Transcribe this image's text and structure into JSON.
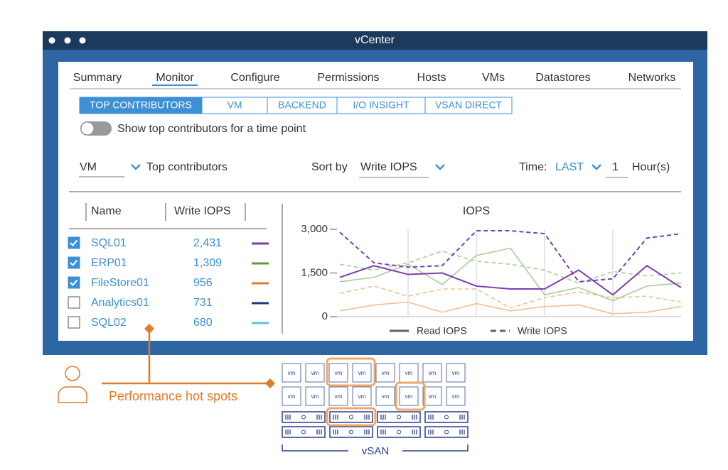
{
  "window": {
    "title": "vCenter"
  },
  "tabs": {
    "items": [
      "Summary",
      "Monitor",
      "Configure",
      "Permissions",
      "Hosts",
      "VMs",
      "Datastores",
      "Networks"
    ],
    "active": 1
  },
  "subtabs": {
    "items": [
      "TOP CONTRIBUTORS",
      "VM",
      "BACKEND",
      "I/O INSIGHT",
      "VSAN DIRECT"
    ],
    "active": 0
  },
  "toggle": {
    "label": "Show top contributors for a time point",
    "on": false
  },
  "filters": {
    "entity": "VM",
    "contributors": "Top contributors",
    "sort_label": "Sort by",
    "sort_value": "Write IOPS",
    "time_label": "Time:",
    "time_mode": "LAST",
    "time_value": "1",
    "time_unit": "Hour(s)"
  },
  "table": {
    "columns": [
      "Name",
      "Write IOPS"
    ],
    "rows": [
      {
        "name": "SQL01",
        "value": "2,431",
        "checked": true,
        "color": "#7b3fb0"
      },
      {
        "name": "ERP01",
        "value": "1,309",
        "checked": true,
        "color": "#5a9e3c"
      },
      {
        "name": "FileStore01",
        "value": "956",
        "checked": true,
        "color": "#e07b2a"
      },
      {
        "name": "Analytics01",
        "value": "731",
        "checked": false,
        "color": "#1f3a7a"
      },
      {
        "name": "SQL02",
        "value": "680",
        "checked": false,
        "color": "#5bc0de"
      }
    ]
  },
  "chart_data": {
    "type": "line",
    "title": "IOPS",
    "categories": [
      null,
      null,
      null,
      null,
      null,
      null,
      null,
      null,
      null,
      null,
      null
    ],
    "ylim": [
      0,
      3000
    ],
    "yticks": [
      0,
      {
        "value": 1500,
        "label": "1,500"
      },
      {
        "value": 3000,
        "label": "3,000"
      }
    ],
    "legend": [
      {
        "label": "Read IOPS",
        "dashed": false
      },
      {
        "label": "Write IOPS",
        "dashed": true
      }
    ],
    "series": [
      {
        "color": "#f2c08e",
        "dashed": false,
        "values": [
          200,
          400,
          500,
          150,
          450,
          200,
          350,
          400,
          100,
          150,
          350
        ]
      },
      {
        "color": "#f2c08e",
        "dashed": true,
        "values": [
          800,
          1050,
          700,
          950,
          950,
          300,
          650,
          850,
          650,
          700,
          500
        ]
      },
      {
        "color": "#a8cf98",
        "dashed": false,
        "values": [
          1200,
          1350,
          1800,
          1100,
          2100,
          2350,
          750,
          1000,
          550,
          1050,
          1150
        ]
      },
      {
        "color": "#a8cf98",
        "dashed": true,
        "values": [
          1800,
          1600,
          1850,
          2250,
          1900,
          1800,
          1600,
          1150,
          1550,
          1400,
          1500
        ]
      },
      {
        "color": "#7b3fb0",
        "dashed": false,
        "values": [
          1350,
          1750,
          1450,
          1500,
          1050,
          950,
          950,
          1600,
          750,
          1750,
          1000
        ]
      },
      {
        "color": "#7b3fb0",
        "dashed": true,
        "values": [
          2900,
          1850,
          1700,
          1750,
          2950,
          2950,
          2850,
          1200,
          1300,
          2700,
          2850
        ]
      }
    ]
  },
  "callout": {
    "label": "Performance hot spots"
  },
  "cluster": {
    "label": "vSAN",
    "vm_label": "vm"
  }
}
